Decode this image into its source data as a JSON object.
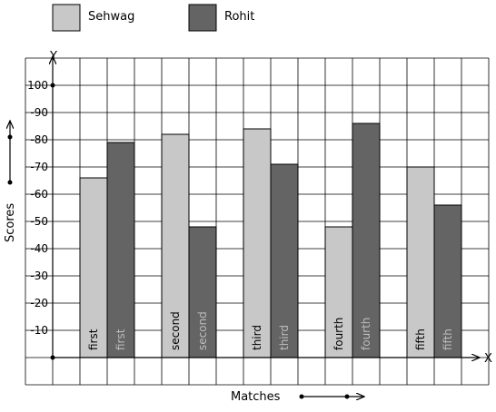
{
  "chart_data": {
    "type": "bar",
    "title": "",
    "xlabel": "Matches",
    "ylabel": "Scores",
    "x_axis_letter": "X",
    "y_axis_letter": "Y",
    "categories": [
      "first",
      "second",
      "third",
      "fourth",
      "fifth"
    ],
    "series": [
      {
        "name": "Sehwag",
        "values": [
          66,
          82,
          84,
          48,
          70
        ],
        "color": "#c8c8c8"
      },
      {
        "name": "Rohit",
        "values": [
          79,
          48,
          71,
          86,
          56
        ],
        "color": "#646464"
      }
    ],
    "y_ticks": [
      10,
      20,
      30,
      40,
      50,
      60,
      70,
      80,
      90,
      100
    ],
    "ylim": [
      0,
      110
    ],
    "grid": true,
    "legend_position": "top-left"
  }
}
